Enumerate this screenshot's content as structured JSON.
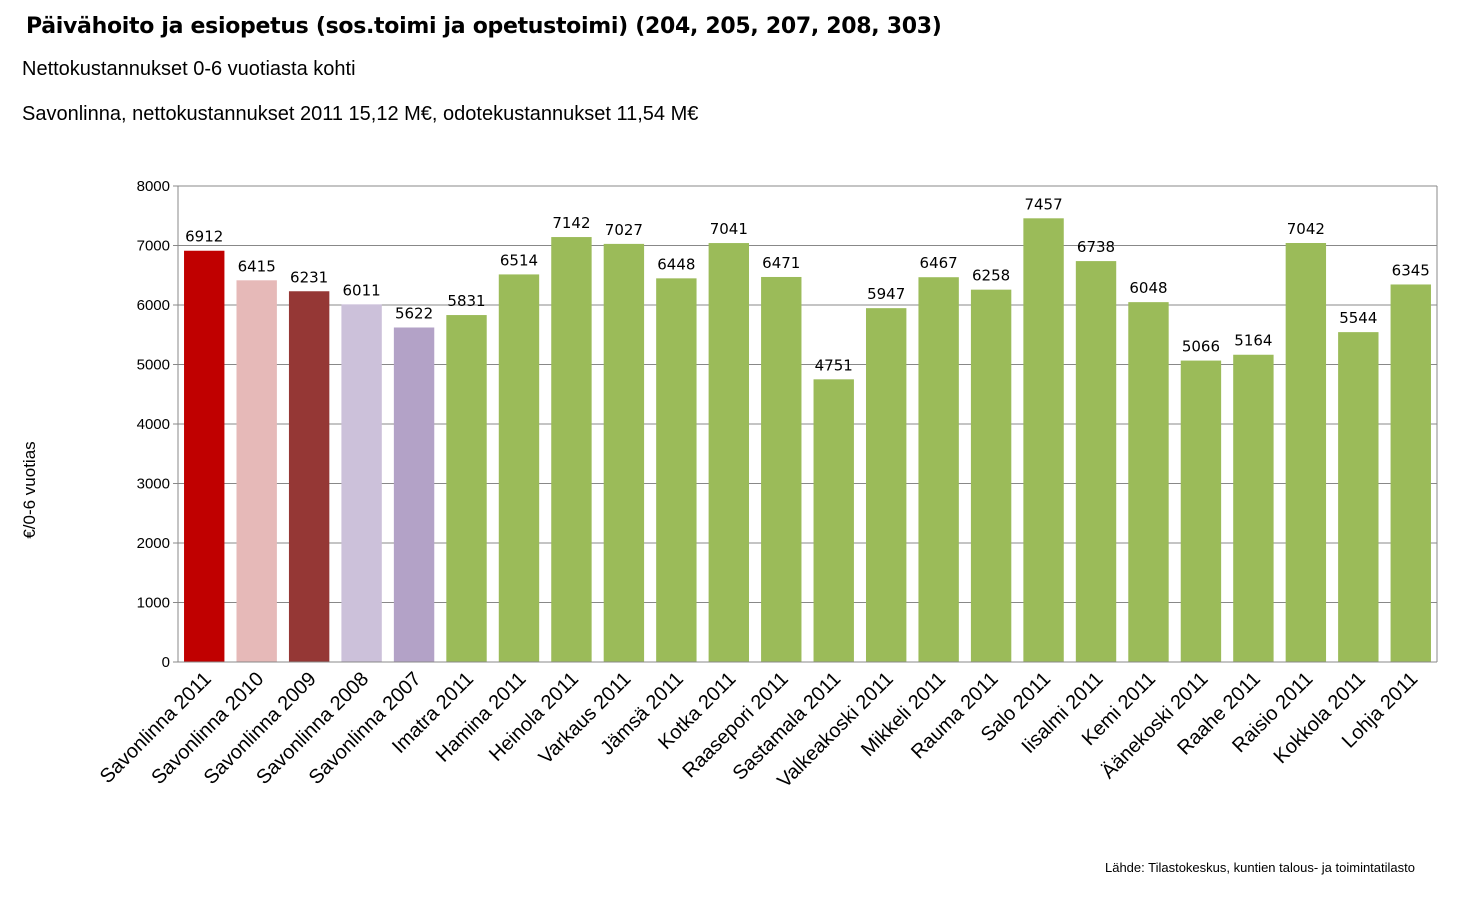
{
  "header": {
    "title": "Päivähoito ja esiopetus (sos.toimi ja opetustoimi) (204, 205, 207, 208, 303)",
    "subtitle": "Nettokustannukset 0-6 vuotiasta kohti",
    "subtitle2": "Savonlinna, nettokustannukset 2011 15,12 M€, odotekustannukset 11,54 M€"
  },
  "footer": {
    "source": "Lähde: Tilastokeskus,  kuntien talous- ja toimintatilasto"
  },
  "chart_data": {
    "type": "bar",
    "title": "",
    "xlabel": "",
    "ylabel": "€/0-6 vuotias",
    "ylim": [
      0,
      8000
    ],
    "yticks": [
      0,
      1000,
      2000,
      3000,
      4000,
      5000,
      6000,
      7000,
      8000
    ],
    "grid": true,
    "data_labels": true,
    "categories": [
      "Savonlinna 2011",
      "Savonlinna 2010",
      "Savonlinna 2009",
      "Savonlinna 2008",
      "Savonlinna 2007",
      "Imatra 2011",
      "Hamina 2011",
      "Heinola 2011",
      "Varkaus 2011",
      "Jämsä 2011",
      "Kotka 2011",
      "Raasepori 2011",
      "Sastamala 2011",
      "Valkeakoski 2011",
      "Mikkeli 2011",
      "Rauma 2011",
      "Salo 2011",
      "Iisalmi 2011",
      "Kemi 2011",
      "Äänekoski 2011",
      "Raahe 2011",
      "Raisio 2011",
      "Kokkola 2011",
      "Lohja 2011"
    ],
    "values": [
      6912,
      6415,
      6231,
      6011,
      5622,
      5831,
      6514,
      7142,
      7027,
      6448,
      7041,
      6471,
      4751,
      5947,
      6467,
      6258,
      7457,
      6738,
      6048,
      5066,
      5164,
      7042,
      5544,
      6345
    ],
    "colors": [
      "#C00000",
      "#E6B9B8",
      "#953735",
      "#CCC1DA",
      "#B3A2C7",
      "#9BBB59",
      "#9BBB59",
      "#9BBB59",
      "#9BBB59",
      "#9BBB59",
      "#9BBB59",
      "#9BBB59",
      "#9BBB59",
      "#9BBB59",
      "#9BBB59",
      "#9BBB59",
      "#9BBB59",
      "#9BBB59",
      "#9BBB59",
      "#9BBB59",
      "#9BBB59",
      "#9BBB59",
      "#9BBB59",
      "#9BBB59"
    ]
  }
}
